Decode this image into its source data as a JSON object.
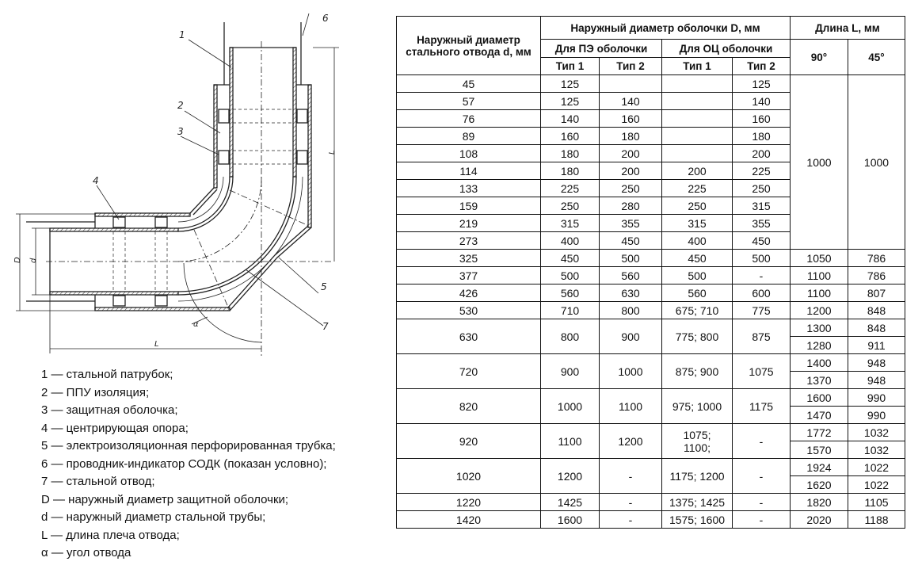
{
  "drawing": {
    "callouts": [
      "1",
      "2",
      "3",
      "4",
      "5",
      "6",
      "7"
    ],
    "dim_D": "D",
    "dim_d": "d",
    "dim_L_vertical": "L",
    "dim_L_horizontal": "L",
    "angle": "α"
  },
  "legend": [
    "1 — стальной патрубок;",
    "2 — ППУ изоляция;",
    "3 — защитная оболочка;",
    "4 — центрирующая опора;",
    "5 — электроизоляционная перфорированная трубка;",
    "6 — проводник-индикатор СОДК (показан условно);",
    "7 — стальной отвод;",
    "D — наружный диаметр защитной оболочки;",
    "d — наружный диаметр стальной трубы;",
    "L — длина плеча отвода;",
    "α — угол отвода"
  ],
  "table": {
    "header": {
      "steel_d": "Наружный диаметр стального отвода d, мм",
      "shell_D": "Наружный диаметр оболочки D, мм",
      "length_L": "Длина L, мм",
      "pe": "Для ПЭ оболочки",
      "oc": "Для ОЦ оболочки",
      "type1": "Тип 1",
      "type2": "Тип 2",
      "type1b": "Тип 1",
      "type2b": "Тип 2",
      "deg90": "90°",
      "deg45": "45°"
    },
    "groups": [
      {
        "rows": [
          {
            "d": "45",
            "pe1": "125",
            "pe2": "",
            "oc1": "",
            "oc2": "125"
          },
          {
            "d": "57",
            "pe1": "125",
            "pe2": "140",
            "oc1": "",
            "oc2": "140"
          },
          {
            "d": "76",
            "pe1": "140",
            "pe2": "160",
            "oc1": "",
            "oc2": "160"
          },
          {
            "d": "89",
            "pe1": "160",
            "pe2": "180",
            "oc1": "",
            "oc2": "180"
          },
          {
            "d": "108",
            "pe1": "180",
            "pe2": "200",
            "oc1": "",
            "oc2": "200"
          },
          {
            "d": "114",
            "pe1": "180",
            "pe2": "200",
            "oc1": "200",
            "oc2": "225"
          },
          {
            "d": "133",
            "pe1": "225",
            "pe2": "250",
            "oc1": "225",
            "oc2": "250"
          },
          {
            "d": "159",
            "pe1": "250",
            "pe2": "280",
            "oc1": "250",
            "oc2": "315"
          },
          {
            "d": "219",
            "pe1": "315",
            "pe2": "355",
            "oc1": "315",
            "oc2": "355"
          },
          {
            "d": "273",
            "pe1": "400",
            "pe2": "450",
            "oc1": "400",
            "oc2": "450"
          }
        ],
        "L": [
          [
            "1000",
            "1000"
          ]
        ]
      },
      {
        "rows": [
          {
            "d": "325",
            "pe1": "450",
            "pe2": "500",
            "oc1": "450",
            "oc2": "500"
          }
        ],
        "L": [
          [
            "1050",
            "786"
          ]
        ]
      },
      {
        "rows": [
          {
            "d": "377",
            "pe1": "500",
            "pe2": "560",
            "oc1": "500",
            "oc2": "-"
          }
        ],
        "L": [
          [
            "1100",
            "786"
          ]
        ]
      },
      {
        "rows": [
          {
            "d": "426",
            "pe1": "560",
            "pe2": "630",
            "oc1": "560",
            "oc2": "600"
          }
        ],
        "L": [
          [
            "1100",
            "807"
          ]
        ]
      },
      {
        "rows": [
          {
            "d": "530",
            "pe1": "710",
            "pe2": "800",
            "oc1": "675; 710",
            "oc2": "775"
          }
        ],
        "L": [
          [
            "1200",
            "848"
          ]
        ]
      },
      {
        "rows": [
          {
            "d": "630",
            "pe1": "800",
            "pe2": "900",
            "oc1": "775; 800",
            "oc2": "875"
          }
        ],
        "L": [
          [
            "1300",
            "848"
          ],
          [
            "1280",
            "911"
          ]
        ]
      },
      {
        "rows": [
          {
            "d": "720",
            "pe1": "900",
            "pe2": "1000",
            "oc1": "875; 900",
            "oc2": "1075"
          }
        ],
        "L": [
          [
            "1400",
            "948"
          ],
          [
            "1370",
            "948"
          ]
        ]
      },
      {
        "rows": [
          {
            "d": "820",
            "pe1": "1000",
            "pe2": "1100",
            "oc1": "975; 1000",
            "oc2": "1175"
          }
        ],
        "L": [
          [
            "1600",
            "990"
          ],
          [
            "1470",
            "990"
          ]
        ]
      },
      {
        "rows": [
          {
            "d": "920",
            "pe1": "1100",
            "pe2": "1200",
            "oc1": "1075;\n1100;",
            "oc2": "-"
          }
        ],
        "L": [
          [
            "1772",
            "1032"
          ],
          [
            "1570",
            "1032"
          ]
        ]
      },
      {
        "rows": [
          {
            "d": "1020",
            "pe1": "1200",
            "pe2": "-",
            "oc1": "1175; 1200",
            "oc2": "-"
          }
        ],
        "L": [
          [
            "1924",
            "1022"
          ],
          [
            "1620",
            "1022"
          ]
        ]
      },
      {
        "rows": [
          {
            "d": "1220",
            "pe1": "1425",
            "pe2": "-",
            "oc1": "1375; 1425",
            "oc2": "-"
          }
        ],
        "L": [
          [
            "1820",
            "1105"
          ]
        ]
      },
      {
        "rows": [
          {
            "d": "1420",
            "pe1": "1600",
            "pe2": "-",
            "oc1": "1575; 1600",
            "oc2": "-"
          }
        ],
        "L": [
          [
            "2020",
            "1188"
          ]
        ]
      }
    ]
  }
}
